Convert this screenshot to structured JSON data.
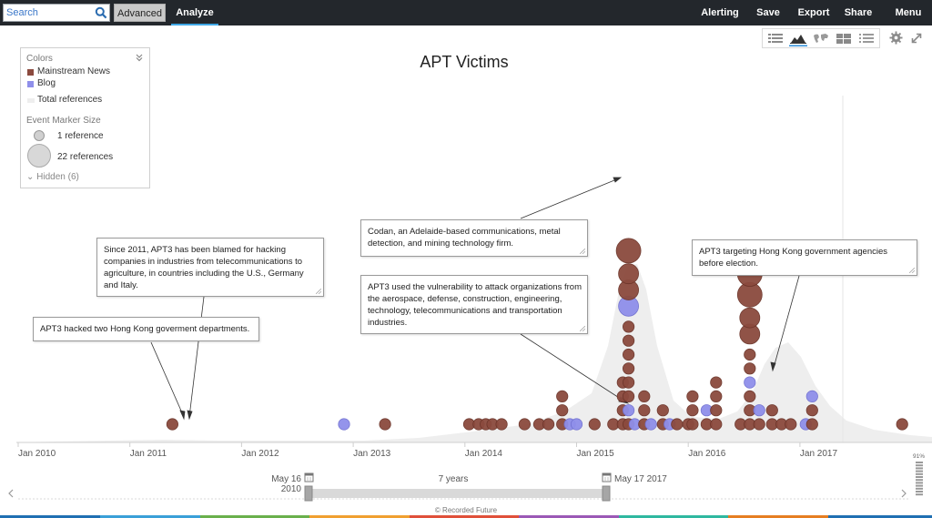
{
  "topbar": {
    "search_placeholder": "Search",
    "advanced_label": "Advanced",
    "analyze_label": "Analyze",
    "nav": [
      "Alerting",
      "Save",
      "Export",
      "Share",
      "Menu"
    ]
  },
  "title": "APT Victims",
  "legend": {
    "colors_heading": "Colors",
    "items": [
      {
        "label": "Mainstream News",
        "color": "#8b4a3e"
      },
      {
        "label": "Blog",
        "color": "#8f8fea"
      },
      {
        "label": "Total references",
        "color": "#eeeeee"
      }
    ],
    "size_heading": "Event Marker Size",
    "size_items": [
      "1 reference",
      "22 references"
    ],
    "hidden_label": "Hidden (6)"
  },
  "annotations": [
    {
      "text": "Since 2011, APT3 has been blamed for hacking companies in industries from telecommunications to agriculture, in countries including the U.S., Germany and Italy."
    },
    {
      "text": "APT3 hacked two Hong Kong goverment departments."
    },
    {
      "text": "Codan, an Adelaide-based communications, metal detection, and mining technology firm."
    },
    {
      "text": "APT3 used the vulnerability to attack organizations from the aerospace, defense, construction, engineering, technology, telecommunications and transportation industries."
    },
    {
      "text": "APT3 targeting Hong Kong government agencies before election."
    }
  ],
  "chart_data": {
    "type": "scatter",
    "title": "APT Victims",
    "x_ticks": [
      "Jan 2010",
      "Jan 2011",
      "Jan 2012",
      "Jan 2013",
      "Jan 2014",
      "Jan 2015",
      "Jan 2016",
      "Jan 2017"
    ],
    "series": [
      {
        "name": "Mainstream News",
        "color": "#8b4a3e"
      },
      {
        "name": "Blog",
        "color": "#8f8fea"
      },
      {
        "name": "Total references",
        "color": "#eeeeee"
      }
    ],
    "events": [
      {
        "date": "2011-05-20",
        "stack": 0,
        "type": "news",
        "size": 1
      },
      {
        "date": "2012-12-01",
        "stack": 0,
        "type": "blog",
        "size": 1
      },
      {
        "date": "2013-04-15",
        "stack": 0,
        "type": "news",
        "size": 1
      },
      {
        "date": "2014-01-15",
        "stack": 0,
        "type": "news",
        "size": 1
      },
      {
        "date": "2014-02-15",
        "stack": 0,
        "type": "news",
        "size": 1
      },
      {
        "date": "2014-03-10",
        "stack": 0,
        "type": "news",
        "size": 1
      },
      {
        "date": "2014-04-01",
        "stack": 0,
        "type": "news",
        "size": 1
      },
      {
        "date": "2014-05-01",
        "stack": 0,
        "type": "news",
        "size": 1
      },
      {
        "date": "2014-07-15",
        "stack": 0,
        "type": "news",
        "size": 1
      },
      {
        "date": "2014-09-01",
        "stack": 0,
        "type": "news",
        "size": 1
      },
      {
        "date": "2014-10-01",
        "stack": 0,
        "type": "news",
        "size": 1
      },
      {
        "date": "2014-11-15",
        "stack": 0,
        "type": "news",
        "size": 1
      },
      {
        "date": "2014-11-15",
        "stack": 1,
        "type": "news",
        "size": 1
      },
      {
        "date": "2014-11-15",
        "stack": 2,
        "type": "news",
        "size": 1
      },
      {
        "date": "2014-12-10",
        "stack": 0,
        "type": "blog",
        "size": 1
      },
      {
        "date": "2015-01-01",
        "stack": 0,
        "type": "blog",
        "size": 1
      },
      {
        "date": "2015-03-01",
        "stack": 0,
        "type": "news",
        "size": 1
      },
      {
        "date": "2015-05-01",
        "stack": 0,
        "type": "news",
        "size": 1
      },
      {
        "date": "2015-06-01",
        "stack": 0,
        "type": "news",
        "size": 1
      },
      {
        "date": "2015-06-01",
        "stack": 1,
        "type": "news",
        "size": 1
      },
      {
        "date": "2015-06-01",
        "stack": 2,
        "type": "news",
        "size": 1
      },
      {
        "date": "2015-06-01",
        "stack": 3,
        "type": "news",
        "size": 1
      },
      {
        "date": "2015-06-20",
        "stack": 0,
        "type": "news",
        "size": 1
      },
      {
        "date": "2015-06-20",
        "stack": 1,
        "type": "blog",
        "size": 1
      },
      {
        "date": "2015-06-20",
        "stack": 2,
        "type": "news",
        "size": 1
      },
      {
        "date": "2015-06-20",
        "stack": 3,
        "type": "news",
        "size": 1
      },
      {
        "date": "2015-06-20",
        "stack": 4,
        "type": "news",
        "size": 1
      },
      {
        "date": "2015-06-20",
        "stack": 5,
        "type": "news",
        "size": 1
      },
      {
        "date": "2015-06-20",
        "stack": 6,
        "type": "news",
        "size": 1
      },
      {
        "date": "2015-06-20",
        "stack": 7,
        "type": "news",
        "size": 1
      },
      {
        "date": "2015-06-20",
        "stack": 8,
        "type": "blog",
        "size": 2
      },
      {
        "date": "2015-06-20",
        "stack": 9,
        "type": "news",
        "size": 2
      },
      {
        "date": "2015-06-20",
        "stack": 10,
        "type": "news",
        "size": 2
      },
      {
        "date": "2015-06-20",
        "stack": 11,
        "type": "news",
        "size": 3
      },
      {
        "date": "2015-07-10",
        "stack": 0,
        "type": "blog",
        "size": 1
      },
      {
        "date": "2015-08-10",
        "stack": 0,
        "type": "news",
        "size": 1
      },
      {
        "date": "2015-08-10",
        "stack": 1,
        "type": "news",
        "size": 1
      },
      {
        "date": "2015-08-10",
        "stack": 2,
        "type": "news",
        "size": 1
      },
      {
        "date": "2015-09-01",
        "stack": 0,
        "type": "blog",
        "size": 1
      },
      {
        "date": "2015-10-10",
        "stack": 0,
        "type": "news",
        "size": 1
      },
      {
        "date": "2015-10-10",
        "stack": 1,
        "type": "news",
        "size": 1
      },
      {
        "date": "2015-11-01",
        "stack": 0,
        "type": "blog",
        "size": 1
      },
      {
        "date": "2015-11-25",
        "stack": 0,
        "type": "news",
        "size": 1
      },
      {
        "date": "2016-01-01",
        "stack": 0,
        "type": "news",
        "size": 1
      },
      {
        "date": "2016-01-15",
        "stack": 0,
        "type": "news",
        "size": 1
      },
      {
        "date": "2016-01-15",
        "stack": 1,
        "type": "news",
        "size": 1
      },
      {
        "date": "2016-01-15",
        "stack": 2,
        "type": "news",
        "size": 1
      },
      {
        "date": "2016-03-01",
        "stack": 0,
        "type": "news",
        "size": 1
      },
      {
        "date": "2016-03-01",
        "stack": 1,
        "type": "blog",
        "size": 1
      },
      {
        "date": "2016-04-01",
        "stack": 0,
        "type": "news",
        "size": 1
      },
      {
        "date": "2016-04-01",
        "stack": 1,
        "type": "news",
        "size": 1
      },
      {
        "date": "2016-04-01",
        "stack": 2,
        "type": "news",
        "size": 1
      },
      {
        "date": "2016-04-01",
        "stack": 3,
        "type": "news",
        "size": 1
      },
      {
        "date": "2016-06-20",
        "stack": 0,
        "type": "news",
        "size": 1
      },
      {
        "date": "2016-07-20",
        "stack": 0,
        "type": "news",
        "size": 1
      },
      {
        "date": "2016-07-20",
        "stack": 1,
        "type": "news",
        "size": 1
      },
      {
        "date": "2016-07-20",
        "stack": 2,
        "type": "news",
        "size": 1
      },
      {
        "date": "2016-07-20",
        "stack": 3,
        "type": "blog",
        "size": 1
      },
      {
        "date": "2016-07-20",
        "stack": 4,
        "type": "news",
        "size": 1
      },
      {
        "date": "2016-07-20",
        "stack": 5,
        "type": "news",
        "size": 1
      },
      {
        "date": "2016-07-20",
        "stack": 6,
        "type": "news",
        "size": 2
      },
      {
        "date": "2016-07-20",
        "stack": 7,
        "type": "news",
        "size": 2
      },
      {
        "date": "2016-07-20",
        "stack": 8,
        "type": "news",
        "size": 3
      },
      {
        "date": "2016-07-20",
        "stack": 9,
        "type": "news",
        "size": 3
      },
      {
        "date": "2016-08-20",
        "stack": 0,
        "type": "news",
        "size": 1
      },
      {
        "date": "2016-08-20",
        "stack": 1,
        "type": "blog",
        "size": 1
      },
      {
        "date": "2016-10-01",
        "stack": 0,
        "type": "news",
        "size": 1
      },
      {
        "date": "2016-10-01",
        "stack": 1,
        "type": "news",
        "size": 1
      },
      {
        "date": "2016-11-01",
        "stack": 0,
        "type": "news",
        "size": 1
      },
      {
        "date": "2016-12-01",
        "stack": 0,
        "type": "news",
        "size": 1
      },
      {
        "date": "2017-01-20",
        "stack": 0,
        "type": "blog",
        "size": 1
      },
      {
        "date": "2017-02-10",
        "stack": 0,
        "type": "news",
        "size": 1
      },
      {
        "date": "2017-02-10",
        "stack": 1,
        "type": "news",
        "size": 1
      },
      {
        "date": "2017-02-10",
        "stack": 2,
        "type": "blog",
        "size": 1
      },
      {
        "date": "2017-12-01",
        "stack": 0,
        "type": "news",
        "size": 1
      }
    ]
  },
  "timeline": {
    "start_label": "May 16 2010",
    "end_label": "May 17 2017",
    "span_label": "7 years",
    "zoom_label": "91%"
  },
  "credit": "© Recorded Future"
}
